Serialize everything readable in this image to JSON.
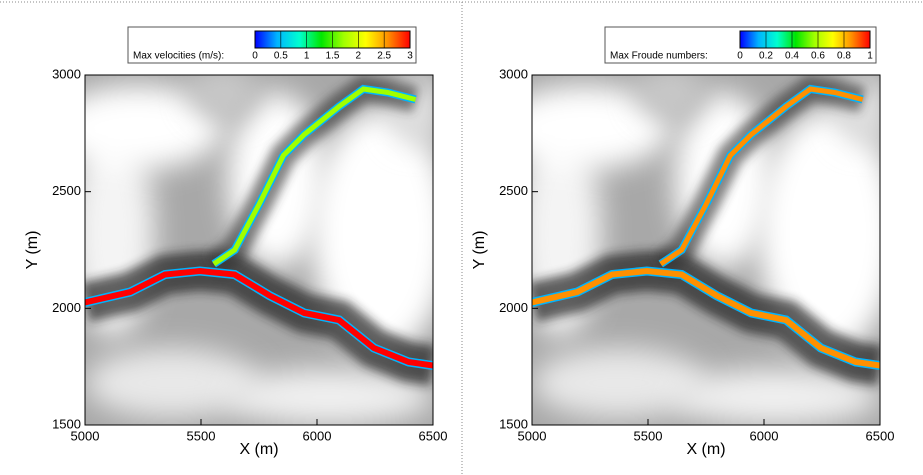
{
  "chart_data": [
    {
      "type": "map",
      "xlabel": "X (m)",
      "ylabel": "Y (m)",
      "xlim": [
        5000,
        6500
      ],
      "xticks": [
        5000,
        5500,
        6000,
        6500
      ],
      "ylim": [
        1500,
        3000
      ],
      "yticks": [
        1500,
        2000,
        2500,
        3000
      ],
      "colorbar": {
        "label": "Max velocities (m/s):",
        "lim": [
          0,
          3
        ],
        "ticks": [
          0,
          0.5,
          1,
          1.5,
          2,
          2.5,
          3
        ],
        "colors": [
          "#0000ff",
          "#00b4ff",
          "#00ffd0",
          "#00e600",
          "#a0ff00",
          "#ffff00",
          "#ff9000",
          "#ff0000"
        ]
      }
    },
    {
      "type": "map",
      "xlabel": "X (m)",
      "ylabel": "Y (m)",
      "xlim": [
        5000,
        6500
      ],
      "xticks": [
        5000,
        5500,
        6000,
        6500
      ],
      "ylim": [
        1500,
        3000
      ],
      "yticks": [
        1500,
        2000,
        2500,
        3000
      ],
      "colorbar": {
        "label": "Max Froude numbers:",
        "lim": [
          0,
          1
        ],
        "ticks": [
          0,
          0.2,
          0.4,
          0.6,
          0.8,
          1
        ],
        "colors": [
          "#0000ff",
          "#00b4ff",
          "#00ffd0",
          "#00e600",
          "#a0ff00",
          "#ffff00",
          "#ff9000",
          "#ff0000"
        ]
      }
    }
  ]
}
